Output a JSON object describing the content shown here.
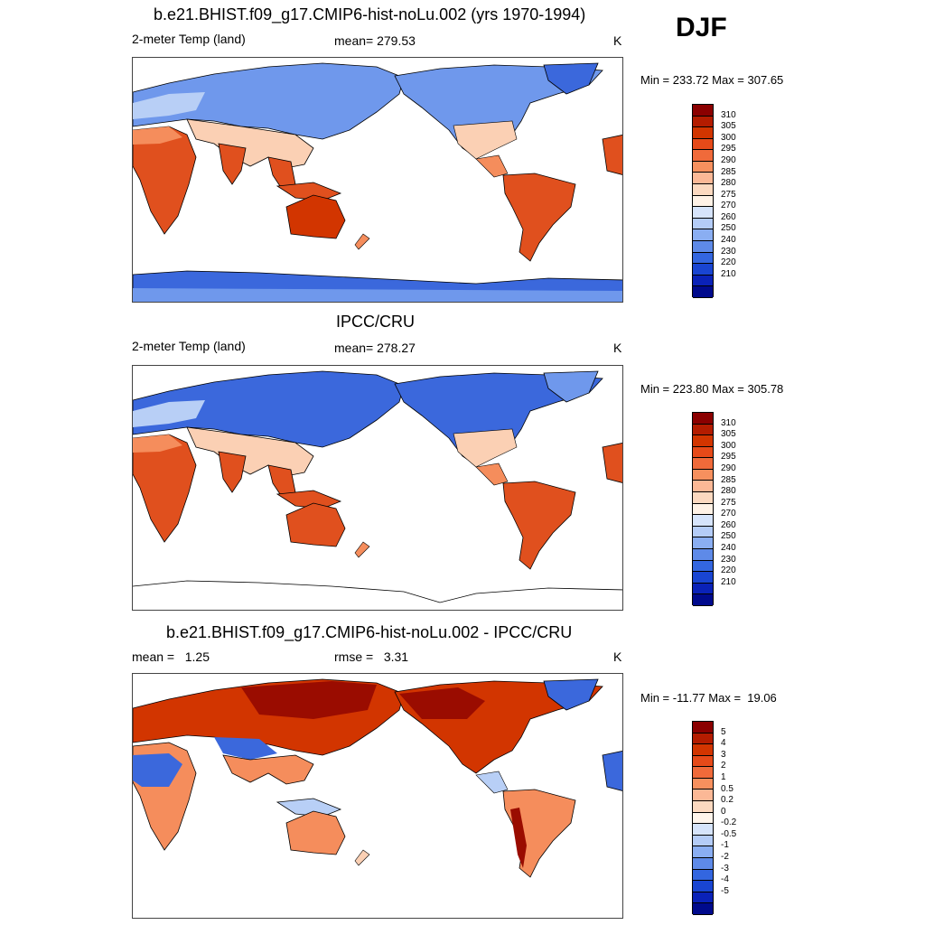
{
  "season": "DJF",
  "panels": [
    {
      "title": "b.e21.BHIST.f09_g17.CMIP6-hist-noLu.002 (yrs 1970-1994)",
      "left": "2-meter Temp (land)",
      "center": "mean= 279.53",
      "units": "K",
      "minmax": "Min = 233.72 Max = 307.65"
    },
    {
      "title": "IPCC/CRU",
      "left": "2-meter Temp (land)",
      "center": "mean= 278.27",
      "units": "K",
      "minmax": "Min = 223.80 Max = 305.78"
    },
    {
      "title": "b.e21.BHIST.f09_g17.CMIP6-hist-noLu.002 - IPCC/CRU",
      "left": "mean =   1.25",
      "center": "rmse =   3.31",
      "units": "K",
      "minmax": "Min = -11.77 Max =  19.06"
    }
  ],
  "colorbars": {
    "temp": {
      "labels": [
        "310",
        "305",
        "300",
        "295",
        "290",
        "285",
        "280",
        "275",
        "270",
        "260",
        "250",
        "240",
        "230",
        "220",
        "210"
      ],
      "colors": [
        "#8b0000",
        "#b41c00",
        "#d23500",
        "#e64a19",
        "#f06a3a",
        "#f7905e",
        "#fbb896",
        "#fcd9c0",
        "#fff2e6",
        "#d6e4fb",
        "#b4ccf7",
        "#8aaef2",
        "#5e8ae8",
        "#3366e0",
        "#1945d2",
        "#0a22b8",
        "#000a8c"
      ]
    },
    "diff": {
      "labels": [
        "5",
        "4",
        "3",
        "2",
        "1",
        "0.5",
        "0.2",
        "0",
        "-0.2",
        "-0.5",
        "-1",
        "-2",
        "-3",
        "-4",
        "-5"
      ],
      "colors": [
        "#8b0000",
        "#b41c00",
        "#d23500",
        "#e64a19",
        "#f06a3a",
        "#f7905e",
        "#fbb896",
        "#fcd9c0",
        "#fff5ec",
        "#d6e4fb",
        "#b4ccf7",
        "#8aaef2",
        "#5e8ae8",
        "#3366e0",
        "#1945d2",
        "#0a22b8",
        "#000a8c"
      ]
    }
  },
  "palette": {
    "hot": "#e0501e",
    "warm": "#f58d5c",
    "mild": "#fbd0b4",
    "cool": "#b8cff6",
    "cold": "#6f98ec",
    "frigid": "#3b68dc",
    "dark_red": "#9a0c00",
    "coast": "#000000"
  }
}
